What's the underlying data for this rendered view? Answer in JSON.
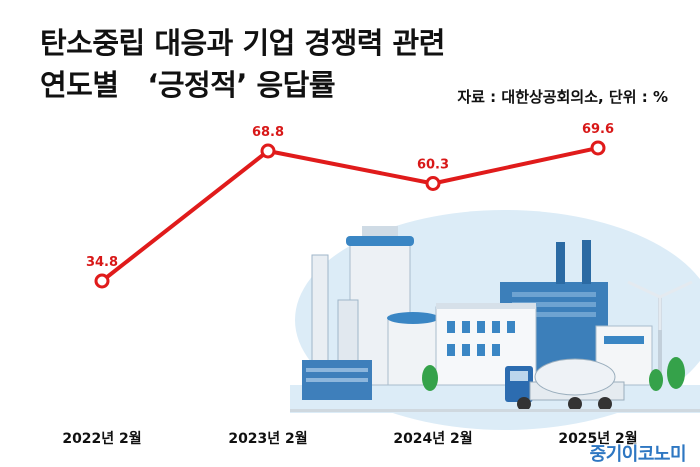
{
  "title_line1": "탄소중립 대응과 기업 경쟁력 관련",
  "title_line2": "연도별   ‘긍정적’ 응답률",
  "source": "자료 : 대한상공회의소, 단위 : %",
  "brand": "중기이코노미",
  "colors": {
    "line": "#e01b1b",
    "label": "#d81818",
    "sky": "#dcecf7",
    "building": "#e7edf3",
    "accent": "#2d6fae"
  },
  "illustration": "factory-with-wind-turbine-and-truck",
  "chart_data": {
    "type": "line",
    "categories": [
      "2022년 2월",
      "2023년 2월",
      "2024년 2월",
      "2025년 2월"
    ],
    "series": [
      {
        "values": [
          34.8,
          68.8,
          60.3,
          69.6
        ]
      }
    ],
    "ylim": [
      0,
      100
    ],
    "grid": false,
    "data_labels": [
      "34.8",
      "68.8",
      "60.3",
      "69.6"
    ]
  }
}
